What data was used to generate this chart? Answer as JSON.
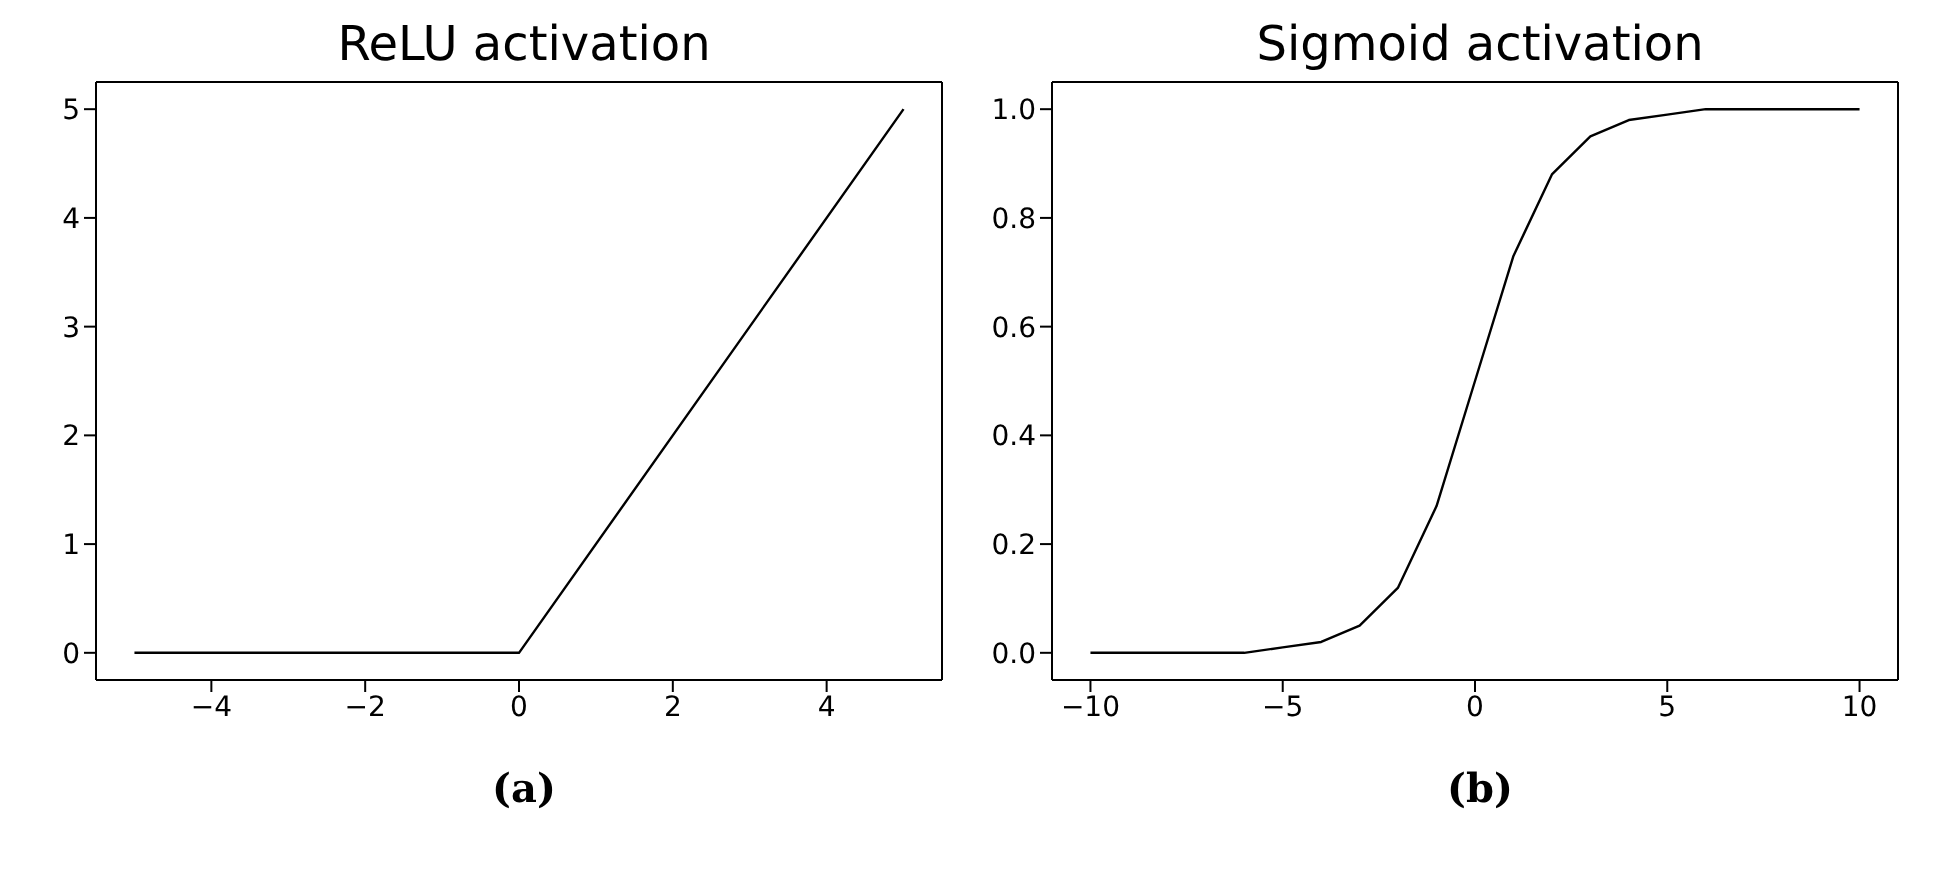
{
  "chart_data": [
    {
      "type": "line",
      "title": "ReLU activation",
      "x": [
        -5,
        0,
        5
      ],
      "values": [
        0,
        0,
        5
      ],
      "color": "#000000",
      "xlim": [
        -5.5,
        5.5
      ],
      "ylim": [
        -0.25,
        5.25
      ],
      "xticks": [
        -4,
        -2,
        0,
        2,
        4
      ],
      "yticks": [
        0,
        1,
        2,
        3,
        4,
        5
      ],
      "annotations": [
        "(a)"
      ]
    },
    {
      "type": "line",
      "title": "Sigmoid activation",
      "x": [
        -10,
        -9,
        -8,
        -7,
        -6,
        -5,
        -4,
        -3,
        -2,
        -1,
        0,
        1,
        2,
        3,
        4,
        5,
        6,
        7,
        8,
        9,
        10
      ],
      "values": [
        0,
        0,
        0,
        0,
        0,
        0.01,
        0.02,
        0.05,
        0.12,
        0.27,
        0.5,
        0.73,
        0.88,
        0.95,
        0.98,
        0.99,
        1,
        1,
        1,
        1,
        1
      ],
      "color": "#000000",
      "xlim": [
        -11,
        11
      ],
      "ylim": [
        -0.05,
        1.05
      ],
      "xticks": [
        -10,
        -5,
        0,
        5,
        10
      ],
      "yticks": [
        {
          "value": 0,
          "label": "0.0"
        },
        {
          "value": 0.2,
          "label": "0.2"
        },
        {
          "value": 0.4,
          "label": "0.4"
        },
        {
          "value": 0.6,
          "label": "0.6"
        },
        {
          "value": 0.8,
          "label": "0.8"
        },
        {
          "value": 1,
          "label": "1.0"
        }
      ],
      "annotations": [
        "(b)"
      ]
    }
  ]
}
